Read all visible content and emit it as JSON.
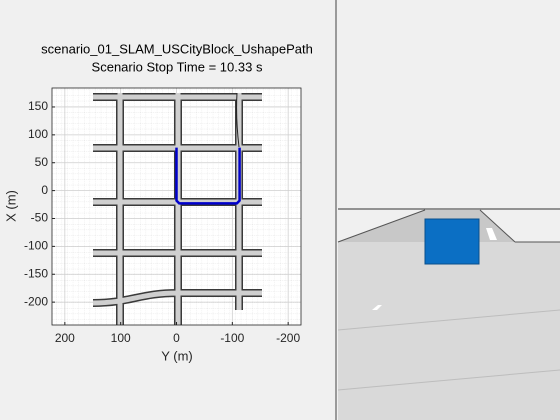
{
  "chart_data": {
    "type": "line",
    "title": "scenario_01_SLAM_USCityBlock_UshapePath",
    "subtitle": "Scenario Stop Time = 10.33 s",
    "x_label": "Y (m)",
    "y_label": "X (m)",
    "xlim": [
      223,
      -223
    ],
    "ylim": [
      -241,
      184
    ],
    "xticks": [
      200,
      100,
      0,
      -100,
      -200
    ],
    "yticks": [
      150,
      100,
      50,
      0,
      -50,
      -100,
      -150,
      -200
    ],
    "grid": true,
    "series": [
      {
        "color": "#0000cc",
        "x": [
          0,
          0,
          -5,
          -108,
          -113,
          -113
        ],
        "values": [
          77,
          -18,
          -23,
          -23,
          -18,
          77
        ]
      }
    ]
  }
}
